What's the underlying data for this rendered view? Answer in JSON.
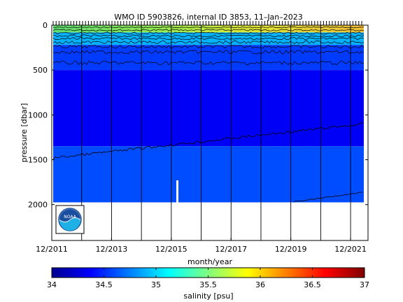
{
  "chart_data": {
    "type": "heatmap",
    "title": "WMO ID 5903826, internal ID 3853, 11–Jan–2023",
    "xlabel": "month/year",
    "ylabel": "pressure [dbar]",
    "xlim": [
      "2011-12",
      "2022-07"
    ],
    "ylim": [
      0,
      2400
    ],
    "y_reversed": true,
    "x_tick_labels": [
      "12/2011",
      "12/2013",
      "12/2015",
      "12/2017",
      "12/2019",
      "12/2021"
    ],
    "y_ticks": [
      0,
      500,
      1000,
      1500,
      2000
    ],
    "y_tick_labels": [
      "0",
      "500",
      "1000",
      "1500",
      "2000"
    ],
    "profile_max_pressure": 1975,
    "colorbar": {
      "label": "salinity [psu]",
      "range": [
        34,
        37
      ],
      "ticks": [
        34,
        34.5,
        35,
        35.5,
        36,
        36.5,
        37
      ],
      "tick_labels": [
        "34",
        "34.5",
        "35",
        "35.5",
        "36",
        "36.5",
        "37"
      ],
      "colormap": "jet"
    },
    "layers": [
      {
        "from_pressure": 0,
        "to_pressure": 80,
        "salinity": 35.8
      },
      {
        "from_pressure": 80,
        "to_pressure": 220,
        "salinity": 34.9
      },
      {
        "from_pressure": 220,
        "to_pressure": 500,
        "salinity": 34.55
      },
      {
        "from_pressure": 500,
        "to_pressure": 1350,
        "salinity": 34.35
      },
      {
        "from_pressure": 1350,
        "to_pressure": 1975,
        "salinity": 34.6
      }
    ],
    "logo": "noaa-logo"
  }
}
